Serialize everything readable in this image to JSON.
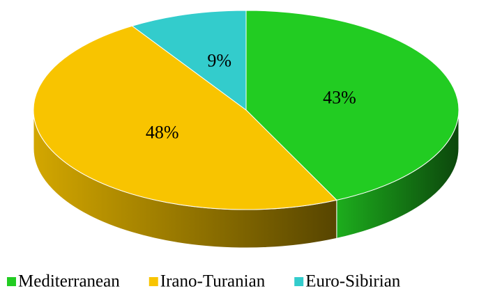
{
  "chart_data": {
    "type": "pie",
    "categories": [
      "Mediterranean",
      "Irano-Turanian",
      "Euro-Sibirian"
    ],
    "values": [
      43,
      48,
      9
    ],
    "value_labels": [
      "43%",
      "48%",
      "9%"
    ],
    "colors": [
      "#22cc22",
      "#f8c400",
      "#33cccc"
    ],
    "legend": "bottom"
  }
}
